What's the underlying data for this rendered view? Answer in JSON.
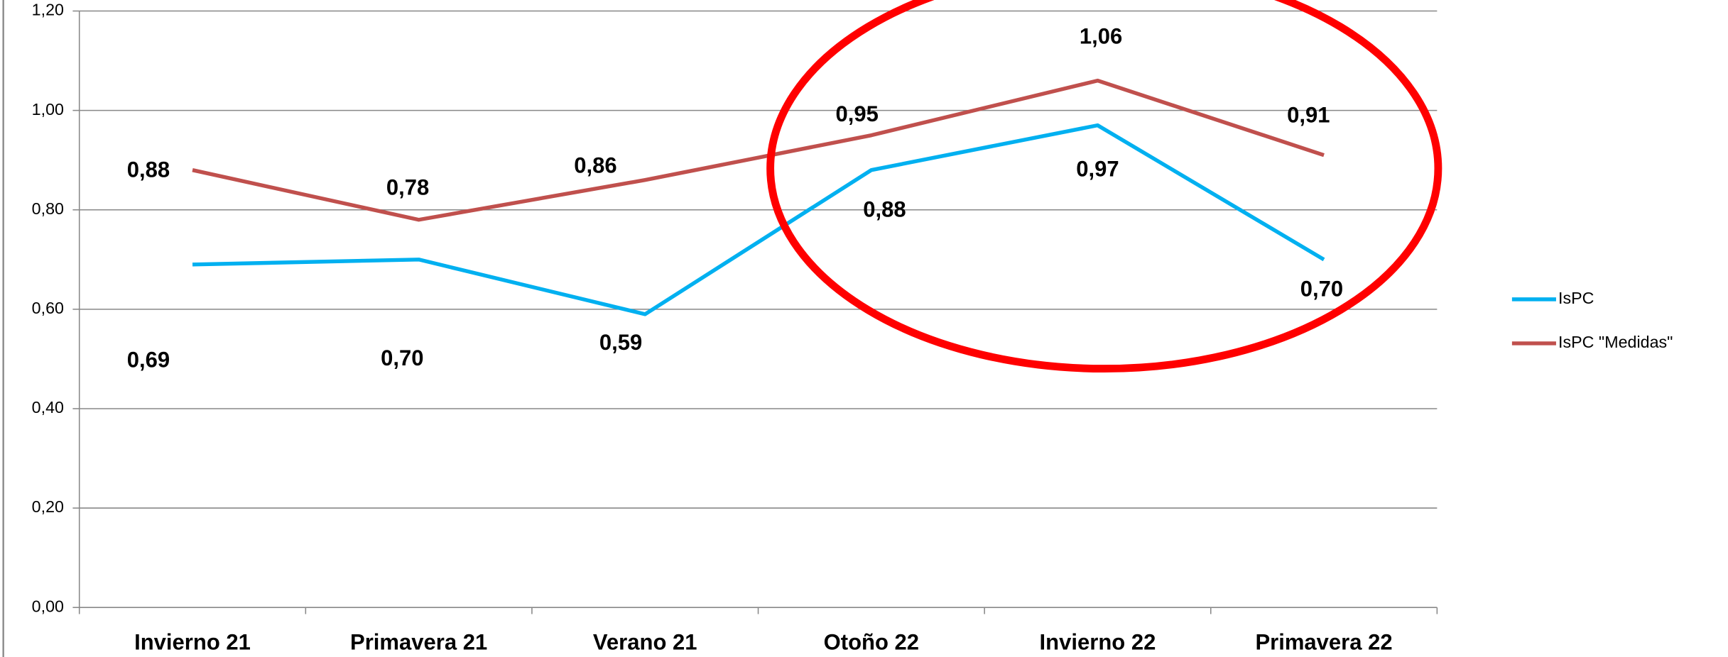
{
  "chart_data": {
    "type": "line",
    "categories": [
      "Invierno 21",
      "Primavera 21",
      "Verano 21",
      "Otoño 22",
      "Invierno 22",
      "Primavera 22"
    ],
    "series": [
      {
        "name": "IsPC",
        "color": "#00b0f0",
        "values": [
          0.69,
          0.7,
          0.59,
          0.88,
          0.97,
          0.7
        ],
        "value_labels": [
          "0,69",
          "0,70",
          "0,59",
          "0,88",
          "0,97",
          "0,70"
        ]
      },
      {
        "name": "IsPC \"Medidas\"",
        "color": "#c0504d",
        "values": [
          0.88,
          0.78,
          0.86,
          0.95,
          1.06,
          0.91
        ],
        "value_labels": [
          "0,88",
          "0,78",
          "0,86",
          "0,95",
          "1,06",
          "0,91"
        ]
      }
    ],
    "ylim": [
      0,
      1.2
    ],
    "yticks": [
      {
        "value": 0,
        "label": "0,00"
      },
      {
        "value": 0.2,
        "label": "0,20"
      },
      {
        "value": 0.4,
        "label": "0,40"
      },
      {
        "value": 0.6,
        "label": "0,60"
      },
      {
        "value": 0.8,
        "label": "0,80"
      },
      {
        "value": 1,
        "label": "1,00"
      },
      {
        "value": 1.2,
        "label": "1,20"
      }
    ],
    "grid": true,
    "legend": "right"
  }
}
